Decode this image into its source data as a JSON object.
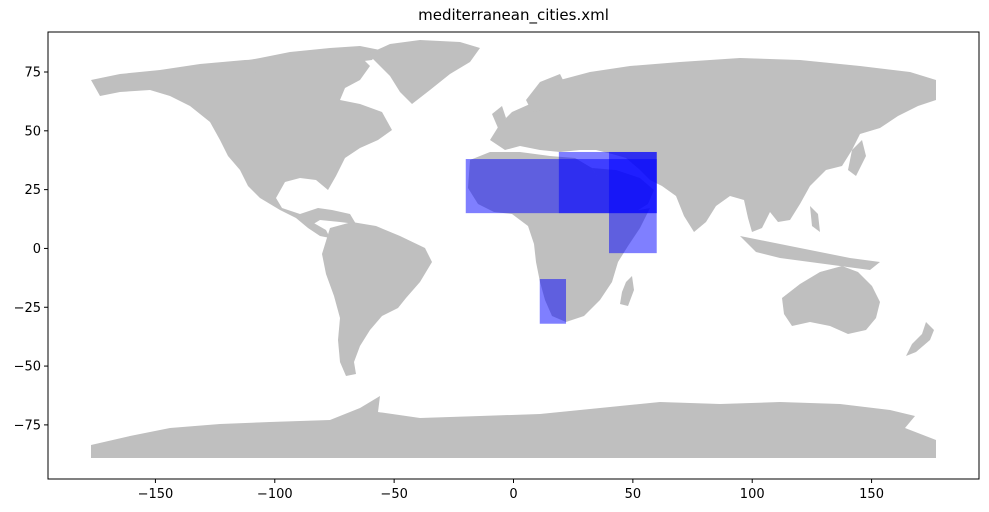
{
  "title": "mediterranean_cities.xml",
  "colors": {
    "land": "#bfbfbf",
    "bbox_fill": "#0000ff",
    "bbox_opacity": 0.5,
    "axes": "#000000"
  },
  "axes": {
    "xlim": [
      -195,
      195
    ],
    "ylim": [
      -98,
      92
    ],
    "x_ticks": [
      -150,
      -100,
      -50,
      0,
      50,
      100,
      150
    ],
    "y_ticks": [
      75,
      50,
      25,
      0,
      -25,
      -50,
      -75
    ],
    "x_tick_labels": [
      "−150",
      "−100",
      "−50",
      "0",
      "50",
      "100",
      "150"
    ],
    "y_tick_labels": [
      "75",
      "50",
      "25",
      "0",
      "−25",
      "−50",
      "−75"
    ]
  },
  "bounding_boxes": [
    {
      "lon_min": -20,
      "lon_max": 60,
      "lat_min": 15,
      "lat_max": 38
    },
    {
      "lon_min": 19,
      "lon_max": 60,
      "lat_min": 15,
      "lat_max": 41
    },
    {
      "lon_min": 40,
      "lon_max": 60,
      "lat_min": -2,
      "lat_max": 41
    },
    {
      "lon_min": 11,
      "lon_max": 22,
      "lat_min": -32,
      "lat_max": -13
    }
  ]
}
